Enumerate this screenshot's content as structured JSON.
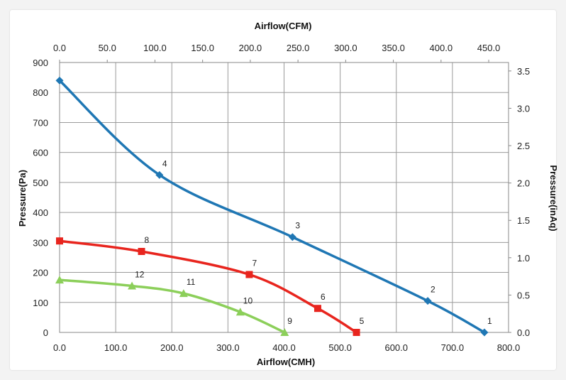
{
  "chart_data": {
    "type": "line",
    "title": "",
    "xlabel": "Airflow(CMH)",
    "x2label": "Airflow(CFM)",
    "ylabel": "Pressure(Pa)",
    "y2label": "Pressure(inAq)",
    "xlim": [
      0,
      800
    ],
    "x2lim": [
      0,
      470.8
    ],
    "ylim": [
      0,
      900
    ],
    "y2lim": [
      0,
      3.613
    ],
    "x_ticks": [
      "0.0",
      "100.0",
      "200.0",
      "300.0",
      "400.0",
      "500.0",
      "600.0",
      "700.0",
      "800.0"
    ],
    "x2_ticks": [
      "0.0",
      "50.0",
      "100.0",
      "150.0",
      "200.0",
      "250.0",
      "300.0",
      "350.0",
      "400.0",
      "450.0"
    ],
    "y_ticks": [
      "0",
      "100",
      "200",
      "300",
      "400",
      "500",
      "600",
      "700",
      "800",
      "900"
    ],
    "y2_ticks": [
      "0.0",
      "0.5",
      "1.0",
      "1.5",
      "2.0",
      "2.5",
      "3.0",
      "3.5"
    ],
    "grid": true,
    "series": [
      {
        "color": "#1f77b4",
        "marker": "diamond",
        "points": [
          {
            "x": 0,
            "y": 840,
            "label": ""
          },
          {
            "x": 178,
            "y": 525,
            "label": "4"
          },
          {
            "x": 415,
            "y": 318,
            "label": "3"
          },
          {
            "x": 656,
            "y": 105,
            "label": "2"
          },
          {
            "x": 757,
            "y": 0,
            "label": "1"
          }
        ]
      },
      {
        "color": "#e8251e",
        "marker": "square",
        "points": [
          {
            "x": 0,
            "y": 305,
            "label": ""
          },
          {
            "x": 146,
            "y": 270,
            "label": "8"
          },
          {
            "x": 338,
            "y": 193,
            "label": "7"
          },
          {
            "x": 460,
            "y": 80,
            "label": "6"
          },
          {
            "x": 529,
            "y": 0,
            "label": "5"
          }
        ]
      },
      {
        "color": "#8ccf5a",
        "marker": "triangle",
        "points": [
          {
            "x": 0,
            "y": 175,
            "label": ""
          },
          {
            "x": 129,
            "y": 155,
            "label": "12"
          },
          {
            "x": 221,
            "y": 130,
            "label": "11"
          },
          {
            "x": 322,
            "y": 68,
            "label": "10"
          },
          {
            "x": 401,
            "y": 0,
            "label": "9"
          }
        ]
      }
    ]
  }
}
